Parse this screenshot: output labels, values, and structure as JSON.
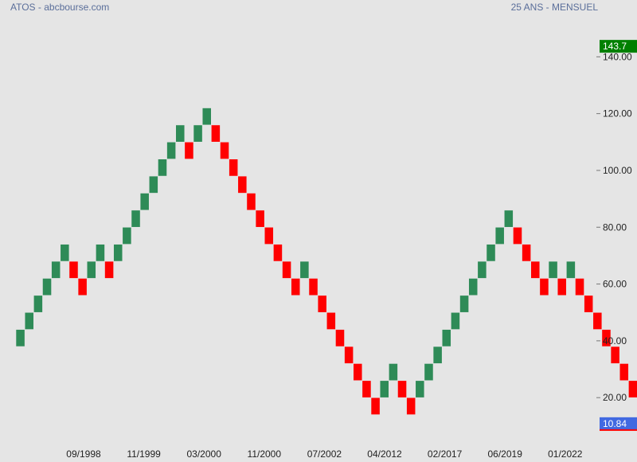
{
  "header": {
    "title": "ATOS - abcbourse.com",
    "period": "25 ANS - MENSUEL"
  },
  "colors": {
    "background": "#e5e5e5",
    "up_brick": "#2e8b57",
    "down_brick": "#ff0000",
    "high_badge": "#008000",
    "last_badge": "#4169e1",
    "text": "#222222",
    "header_text": "#5a6e9a"
  },
  "chart_data": {
    "type": "renko",
    "box_size": 6,
    "ylim": [
      8,
      150
    ],
    "y_ticks": [
      "20.00",
      "40.00",
      "60.00",
      "80.00",
      "100.00",
      "120.00",
      "140.00"
    ],
    "x_ticks": [
      "09/1998",
      "11/1999",
      "03/2000",
      "11/2000",
      "07/2002",
      "04/2012",
      "02/2017",
      "06/2019",
      "01/2022"
    ],
    "bricks": [
      {
        "dir": "up",
        "low": 38,
        "high": 44
      },
      {
        "dir": "up",
        "low": 44,
        "high": 50
      },
      {
        "dir": "up",
        "low": 50,
        "high": 56
      },
      {
        "dir": "up",
        "low": 56,
        "high": 62
      },
      {
        "dir": "up",
        "low": 62,
        "high": 68
      },
      {
        "dir": "up",
        "low": 68,
        "high": 74
      },
      {
        "dir": "down",
        "low": 62,
        "high": 68
      },
      {
        "dir": "down",
        "low": 56,
        "high": 62
      },
      {
        "dir": "up",
        "low": 62,
        "high": 68
      },
      {
        "dir": "up",
        "low": 68,
        "high": 74
      },
      {
        "dir": "down",
        "low": 62,
        "high": 68
      },
      {
        "dir": "up",
        "low": 68,
        "high": 74
      },
      {
        "dir": "up",
        "low": 74,
        "high": 80
      },
      {
        "dir": "up",
        "low": 80,
        "high": 86
      },
      {
        "dir": "up",
        "low": 86,
        "high": 92
      },
      {
        "dir": "up",
        "low": 92,
        "high": 98
      },
      {
        "dir": "up",
        "low": 98,
        "high": 104
      },
      {
        "dir": "up",
        "low": 104,
        "high": 110
      },
      {
        "dir": "up",
        "low": 110,
        "high": 116
      },
      {
        "dir": "down",
        "low": 104,
        "high": 110
      },
      {
        "dir": "up",
        "low": 110,
        "high": 116
      },
      {
        "dir": "up",
        "low": 116,
        "high": 122
      },
      {
        "dir": "down",
        "low": 110,
        "high": 116
      },
      {
        "dir": "down",
        "low": 104,
        "high": 110
      },
      {
        "dir": "down",
        "low": 98,
        "high": 104
      },
      {
        "dir": "down",
        "low": 92,
        "high": 98
      },
      {
        "dir": "down",
        "low": 86,
        "high": 92
      },
      {
        "dir": "down",
        "low": 80,
        "high": 86
      },
      {
        "dir": "down",
        "low": 74,
        "high": 80
      },
      {
        "dir": "down",
        "low": 68,
        "high": 74
      },
      {
        "dir": "down",
        "low": 62,
        "high": 68
      },
      {
        "dir": "down",
        "low": 56,
        "high": 62
      },
      {
        "dir": "up",
        "low": 62,
        "high": 68
      },
      {
        "dir": "down",
        "low": 56,
        "high": 62
      },
      {
        "dir": "down",
        "low": 50,
        "high": 56
      },
      {
        "dir": "down",
        "low": 44,
        "high": 50
      },
      {
        "dir": "down",
        "low": 38,
        "high": 44
      },
      {
        "dir": "down",
        "low": 32,
        "high": 38
      },
      {
        "dir": "down",
        "low": 26,
        "high": 32
      },
      {
        "dir": "down",
        "low": 20,
        "high": 26
      },
      {
        "dir": "down",
        "low": 14,
        "high": 20
      },
      {
        "dir": "up",
        "low": 20,
        "high": 26
      },
      {
        "dir": "up",
        "low": 26,
        "high": 32
      },
      {
        "dir": "down",
        "low": 20,
        "high": 26
      },
      {
        "dir": "down",
        "low": 14,
        "high": 20
      },
      {
        "dir": "up",
        "low": 20,
        "high": 26
      },
      {
        "dir": "up",
        "low": 26,
        "high": 32
      },
      {
        "dir": "up",
        "low": 32,
        "high": 38
      },
      {
        "dir": "up",
        "low": 38,
        "high": 44
      },
      {
        "dir": "up",
        "low": 44,
        "high": 50
      },
      {
        "dir": "up",
        "low": 50,
        "high": 56
      },
      {
        "dir": "up",
        "low": 56,
        "high": 62
      },
      {
        "dir": "up",
        "low": 62,
        "high": 68
      },
      {
        "dir": "up",
        "low": 68,
        "high": 74
      },
      {
        "dir": "up",
        "low": 74,
        "high": 80
      },
      {
        "dir": "up",
        "low": 80,
        "high": 86
      },
      {
        "dir": "down",
        "low": 74,
        "high": 80
      },
      {
        "dir": "down",
        "low": 68,
        "high": 74
      },
      {
        "dir": "down",
        "low": 62,
        "high": 68
      },
      {
        "dir": "down",
        "low": 56,
        "high": 62
      },
      {
        "dir": "up",
        "low": 62,
        "high": 68
      },
      {
        "dir": "down",
        "low": 56,
        "high": 62
      },
      {
        "dir": "up",
        "low": 62,
        "high": 68
      },
      {
        "dir": "down",
        "low": 56,
        "high": 62
      },
      {
        "dir": "down",
        "low": 50,
        "high": 56
      },
      {
        "dir": "down",
        "low": 44,
        "high": 50
      },
      {
        "dir": "down",
        "low": 38,
        "high": 44
      },
      {
        "dir": "down",
        "low": 32,
        "high": 38
      },
      {
        "dir": "down",
        "low": 26,
        "high": 32
      },
      {
        "dir": "down",
        "low": 20,
        "high": 26
      },
      {
        "dir": "down",
        "low": 14,
        "high": 20
      },
      {
        "dir": "down",
        "low": 8,
        "high": 14
      }
    ],
    "high_marker": {
      "label": "143.7",
      "value": 143.7
    },
    "last_marker": {
      "label": "10.84",
      "value": 10.84
    }
  }
}
